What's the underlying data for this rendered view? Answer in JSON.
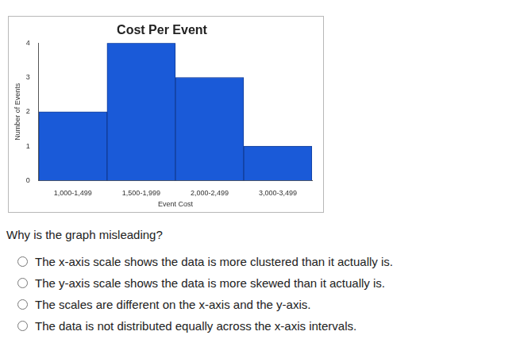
{
  "chart_data": {
    "type": "bar",
    "title": "Cost Per Event",
    "x_label": "Event Cost",
    "y_label": "Number of Events",
    "categories": [
      "1,000-1,499",
      "1,500-1,999",
      "2,000-2,499",
      "3,000-3,499"
    ],
    "values": [
      2,
      4,
      3,
      1
    ],
    "color": "#1a5ad8",
    "ylim": [
      0,
      4
    ],
    "yticks": [
      0,
      1,
      2,
      3,
      4
    ],
    "grid": false
  },
  "question": "Why is the graph misleading?",
  "options": [
    "The x-axis scale shows the data is more clustered than it actually is.",
    "The y-axis scale shows the data is more skewed than it actually is.",
    "The scales are different on the x-axis and the y-axis.",
    "The data is not distributed equally across the x-axis intervals."
  ]
}
